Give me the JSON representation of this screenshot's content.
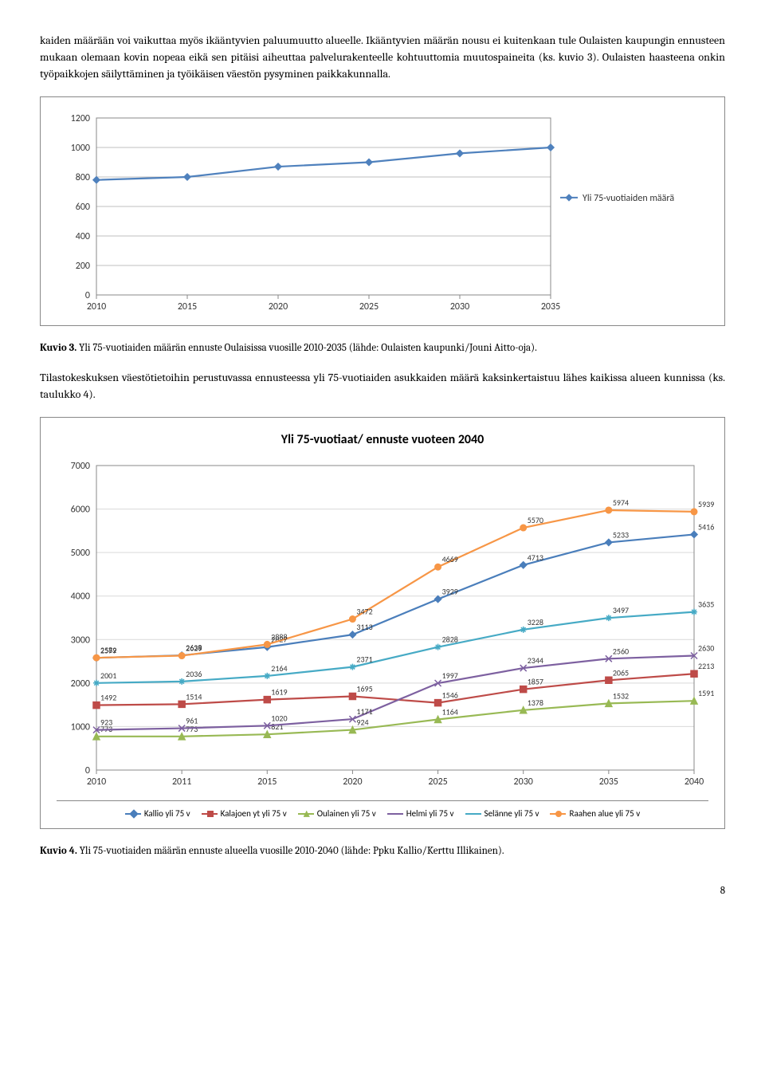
{
  "para1": "kaiden määrään voi vaikuttaa myös ikääntyvien paluumuutto alueelle. Ikääntyvien määrän nousu ei kuitenkaan tule Oulaisten kaupungin ennusteen mukaan olemaan kovin nopeaa eikä sen pitäisi aiheuttaa palvelurakenteelle kohtuuttomia muutospaineita (ks. kuvio 3). Oulaisten haasteena onkin työpaikkojen säilyttäminen ja työikäisen väestön pysyminen paikkakunnalla.",
  "chart1": {
    "type": "line",
    "x": [
      2010,
      2015,
      2020,
      2025,
      2030,
      2035
    ],
    "series": [
      {
        "name": "Yli 75-vuotiaiden määrä",
        "color": "#4f81bd",
        "marker": "diamond",
        "y": [
          780,
          800,
          870,
          900,
          960,
          1000
        ]
      }
    ],
    "ylim": [
      0,
      1200
    ],
    "ytick_step": 200,
    "background": "#ffffff",
    "grid": "#bfbfbf",
    "legend_pos": "right"
  },
  "caption1_bold": "Kuvio 3.",
  "caption1_rest": " Yli 75-vuotiaiden määrän ennuste Oulaisissa vuosille 2010-2035 (lähde: Oulaisten kaupunki/Jouni Aitto-oja).",
  "para2": "Tilastokeskuksen väestötietoihin perustuvassa ennusteessa yli 75-vuotiaiden asukkaiden määrä kaksinkertaistuu lähes kaikissa alueen kunnissa (ks. taulukko 4).",
  "chart2": {
    "type": "line",
    "title": "Yli 75-vuotiaat/ ennuste vuoteen 2040",
    "x": [
      2010,
      2011,
      2015,
      2020,
      2025,
      2030,
      2035,
      2040
    ],
    "ylim": [
      0,
      7000
    ],
    "ytick_step": 1000,
    "background": "#ffffff",
    "grid": "#d9d9d9",
    "series": [
      {
        "name": "Kallio yli 75 v",
        "color": "#4a7ebb",
        "marker": "diamond",
        "y": [
          2579,
          2638,
          2827,
          3113,
          3929,
          4713,
          5233,
          5416
        ]
      },
      {
        "name": "Kalajoen yt yli 75 v",
        "color": "#be4b48",
        "marker": "square",
        "y": [
          1492,
          1514,
          1619,
          1695,
          1546,
          1857,
          2065,
          2213
        ]
      },
      {
        "name": "Oulainen yli 75 v",
        "color": "#98b954",
        "marker": "triangle",
        "y": [
          773,
          773,
          821,
          924,
          1164,
          1378,
          1532,
          1591
        ]
      },
      {
        "name": "Helmi yli 75 v",
        "color": "#7d60a0",
        "marker": "x",
        "y": [
          923,
          961,
          1020,
          1171,
          1997,
          2344,
          2560,
          2630
        ]
      },
      {
        "name": "Selänne yli 75 v",
        "color": "#46aac5",
        "marker": "star",
        "y": [
          2001,
          2036,
          2164,
          2371,
          2828,
          3228,
          3497,
          3635
        ]
      },
      {
        "name": "Raahen alue yli 75 v",
        "color": "#f79646",
        "marker": "circle",
        "y": [
          2582,
          2629,
          2888,
          3472,
          4669,
          5570,
          5974,
          5939
        ]
      }
    ]
  },
  "caption2_bold": "Kuvio 4.",
  "caption2_rest": " Yli 75-vuotiaiden määrän ennuste alueella vuosille 2010-2040 (lähde: Ppku Kallio/Kerttu Illikainen).",
  "page_number": "8"
}
